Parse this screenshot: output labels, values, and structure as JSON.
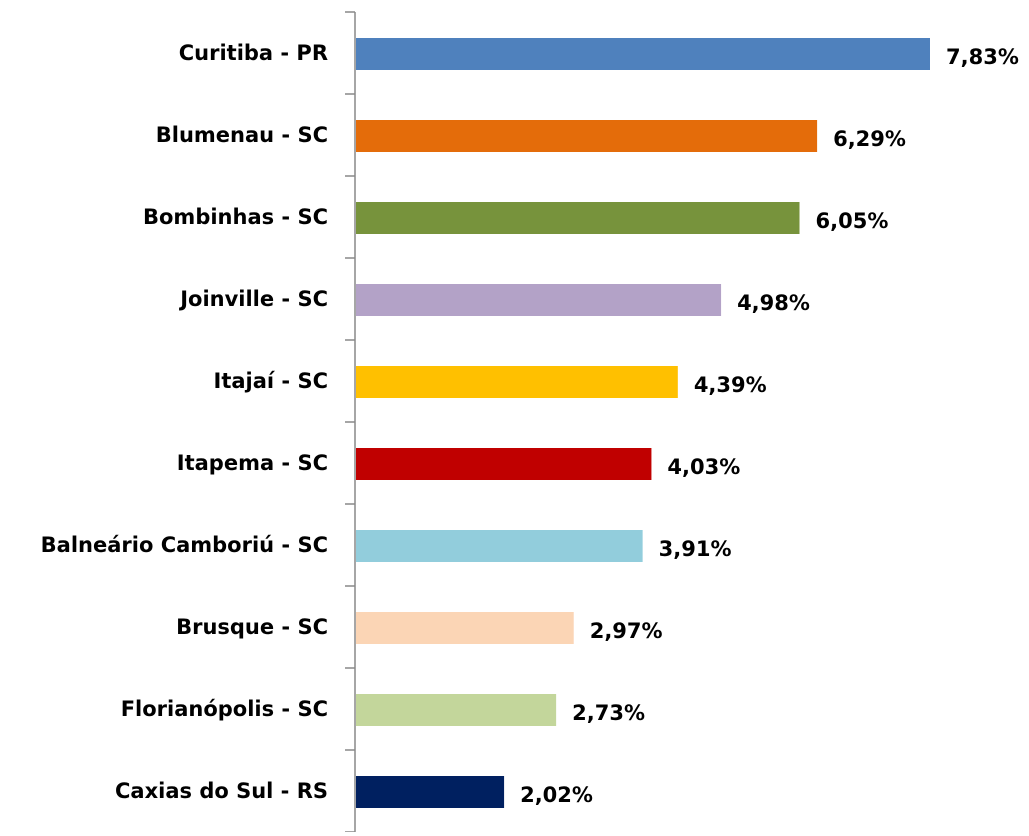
{
  "chart_data": {
    "type": "bar",
    "orientation": "horizontal",
    "categories": [
      "Curitiba - PR",
      "Blumenau - SC",
      "Bombinhas - SC",
      "Joinville - SC",
      "Itajaí - SC",
      "Itapema - SC",
      "Balneário Camboriú - SC",
      "Brusque - SC",
      "Florianópolis - SC",
      "Caxias do Sul - RS"
    ],
    "values": [
      7.83,
      6.29,
      6.05,
      4.98,
      4.39,
      4.03,
      3.91,
      2.97,
      2.73,
      2.02
    ],
    "value_labels": [
      "7,83%",
      "6,29%",
      "6,05%",
      "4,98%",
      "4,39%",
      "4,03%",
      "3,91%",
      "2,97%",
      "2,73%",
      "2,02%"
    ],
    "colors": [
      "#4f81bd",
      "#e46c0a",
      "#77933c",
      "#b3a2c7",
      "#ffc000",
      "#c00000",
      "#92cddc",
      "#fbd5b5",
      "#c3d69b",
      "#002060"
    ]
  }
}
